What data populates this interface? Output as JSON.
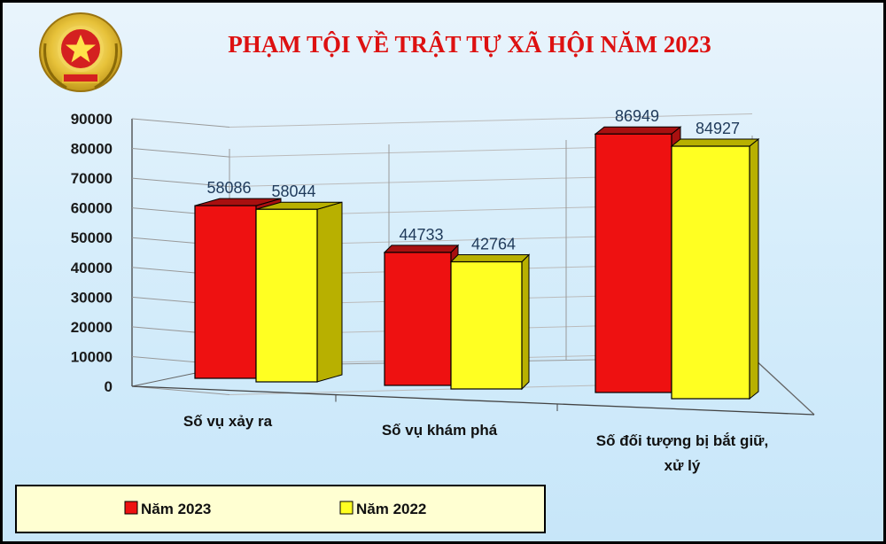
{
  "chart_data": {
    "type": "bar",
    "title": "PHẠM TỘI VỀ TRẬT  TỰ XÃ HỘI NĂM 2023",
    "categories": [
      [
        "Số vụ xảy ra"
      ],
      [
        "Số vụ khám phá"
      ],
      [
        "Số đối tượng bị bắt giữ,",
        "xử lý"
      ]
    ],
    "series": [
      {
        "name": "Năm 2023",
        "values": [
          58086,
          44733,
          86949
        ],
        "color": "#ee1111"
      },
      {
        "name": "Năm 2022",
        "values": [
          58044,
          42764,
          84927
        ],
        "color": "#ffff22"
      }
    ],
    "yticks": [
      "0",
      "10000",
      "20000",
      "30000",
      "40000",
      "50000",
      "60000",
      "70000",
      "80000",
      "90000"
    ],
    "ylim": [
      0,
      90000
    ],
    "grid": true,
    "legend_position": "bottom-left",
    "title_color": "#dd1111"
  },
  "icons": {
    "emblem": "police-emblem-icon"
  }
}
